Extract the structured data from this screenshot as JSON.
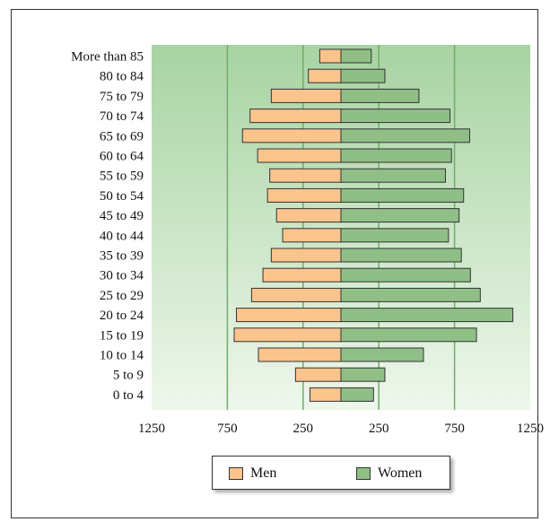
{
  "chart_data": {
    "type": "bar",
    "orientation": "horizontal-population-pyramid",
    "title": "",
    "xlabel": "",
    "ylabel": "",
    "categories": [
      "More than 85",
      "80 to 84",
      "75 to 79",
      "70 to 74",
      "65 to 69",
      "60 to 64",
      "55 to 59",
      "50 to 54",
      "45 to 49",
      "40 to 44",
      "35 to 39",
      "30 to 34",
      "25 to 29",
      "20 to 24",
      "15 to 19",
      "10 to 14",
      "5 to 9",
      "0 to 4"
    ],
    "series": [
      {
        "name": "Men",
        "color": "#fbc48d",
        "side": "left",
        "values": [
          140,
          215,
          460,
          600,
          650,
          550,
          470,
          485,
          425,
          385,
          460,
          515,
          590,
          690,
          705,
          545,
          300,
          205
        ]
      },
      {
        "name": "Women",
        "color": "#8fbf86",
        "side": "right",
        "values": [
          200,
          290,
          515,
          720,
          850,
          730,
          690,
          810,
          780,
          710,
          795,
          855,
          920,
          1135,
          895,
          545,
          290,
          215
        ]
      }
    ],
    "x_ticks": [
      "1250",
      "750",
      "250",
      "250",
      "750",
      "1250"
    ],
    "xlim": [
      -1250,
      1250
    ],
    "grid": "vertical",
    "legend_position": "bottom"
  },
  "legend": {
    "men_label": "Men",
    "women_label": "Women"
  },
  "colors": {
    "plot_bg_top": "#a8d3a2",
    "plot_bg_bottom": "#eef7ec",
    "grid": "#6fae6a",
    "bar_stroke": "#333333"
  }
}
